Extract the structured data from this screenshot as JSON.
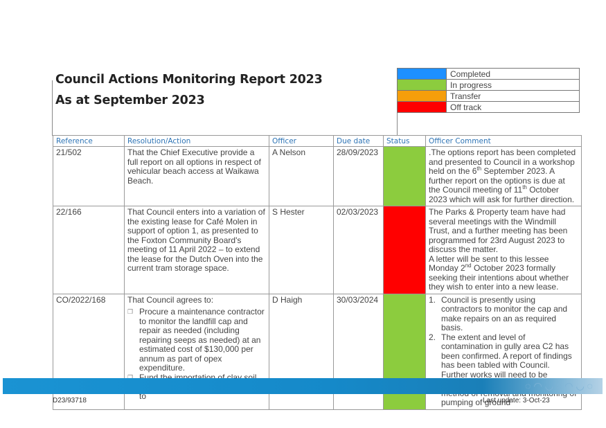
{
  "report": {
    "title_line1": "Council Actions Monitoring Report 2023",
    "title_line2": "As at September 2023"
  },
  "legend": [
    {
      "label": "Completed",
      "color": "#1e90ff"
    },
    {
      "label": "In progress",
      "color": "#8ccc3e"
    },
    {
      "label": "Transfer",
      "color": "#f59e0b"
    },
    {
      "label": "Off track",
      "color": "#ff0000"
    }
  ],
  "table": {
    "headers": {
      "reference": "Reference",
      "resolution": "Resolution/Action",
      "officer": "Officer",
      "due_date": "Due date",
      "status": "Status",
      "comment": "Officer Comment"
    },
    "rows": [
      {
        "reference": "21/502",
        "resolution": "That the Chief Executive provide a full report on all options in respect of vehicular beach access at Waikawa Beach.",
        "officer": "A Nelson",
        "due_date": "28/09/2023",
        "status_color": "#8ccc3e",
        "comment_a": ".The options report has been completed and presented to Council in a workshop held on the 6",
        "comment_sup1": "th",
        "comment_b": " September 2023. A further report on the options is due at the Council meeting of 11",
        "comment_sup2": "th",
        "comment_c": " October 2023 which will ask for further direction."
      },
      {
        "reference": "22/166",
        "resolution": "That Council enters into a variation of the existing lease for Café Molen in support of option 1, as presented to the Foxton Community Board's meeting of 11 April 2022 – to extend the lease for the Dutch Oven into the current tram storage space.",
        "officer": "S Hester",
        "due_date": "02/03/2023",
        "status_color": "#ff0000",
        "comment_p1": "The Parks & Property team have had several meetings with the Windmill Trust, and a further meeting has been programmed for 23rd August 2023 to discuss the matter.",
        "comment_p2a": "A letter will be sent to this lessee Monday 2",
        "comment_sup": "nd",
        "comment_p2b": " October 2023 formally seeking their intentions about whether they wish to enter into a new lease."
      },
      {
        "reference": "CO/2022/168",
        "resolution_intro": "That Council agrees to:",
        "bullet_marker": "❒",
        "bullets": [
          "Procure a maintenance contractor to monitor the landfill cap and repair as needed (including repairing seeps as needed) at an estimated cost of $130,000 per annum as part of opex expenditure.",
          "Fund the importation of clay soil, shaping the top of the Old Dump to"
        ],
        "officer": "D Haigh",
        "due_date": "30/03/2024",
        "status_color": "#8ccc3e",
        "comment_items": [
          {
            "num": "1.",
            "text": "Council is presently using contractors to monitor the cap and make repairs on an as required basis."
          },
          {
            "num": "2.",
            "text": "The extent and level of contamination in gully area C2 has been confirmed. A report of findings has been tabled with Council. Further works will need to be undertaken to determine the best method of removal and monitoring of pumping of ground"
          }
        ]
      }
    ]
  },
  "footer": {
    "doc_ref": "D23/93718",
    "last_update": "Last update: 3-Oct-23"
  }
}
